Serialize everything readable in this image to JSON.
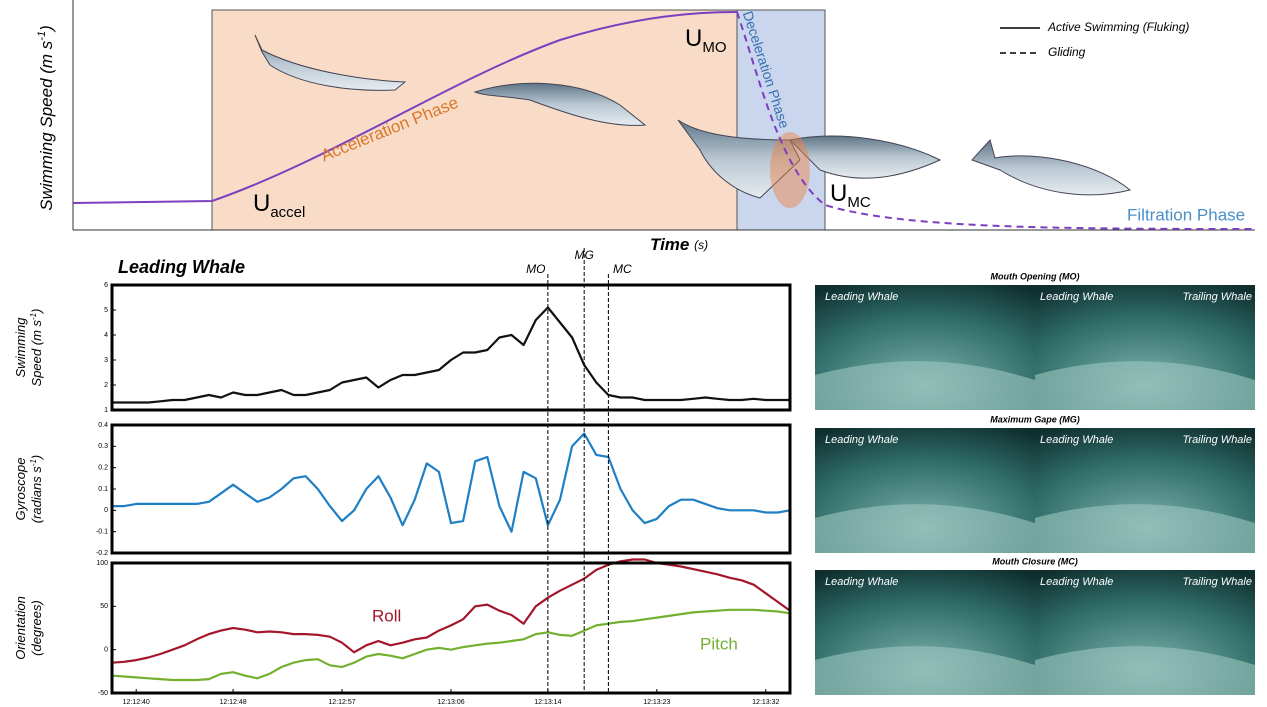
{
  "schematic": {
    "ylabel": {
      "text": "Swimming Speed (m s",
      "sup": "-1",
      "end": ")"
    },
    "xlabel": {
      "text": "Time",
      "unit": "(s)"
    },
    "phases": [
      "Acceleration Phase",
      "Deceleration Phase",
      "Filtration Phase"
    ],
    "speeds": [
      {
        "main": "U",
        "sub": "accel"
      },
      {
        "main": "U",
        "sub": "MO"
      },
      {
        "main": "U",
        "sub": "MC"
      }
    ],
    "legend": [
      "Active Swimming (Fluking)",
      "Gliding"
    ]
  },
  "panel_title": "Leading Whale",
  "events": [
    {
      "label": "MO",
      "x": "12:13:14"
    },
    {
      "label": "MG",
      "x": "12:13:17"
    },
    {
      "label": "MC",
      "x": "12:13:19"
    }
  ],
  "chart_data": [
    {
      "type": "line",
      "ylabel": {
        "line1": "Swimming",
        "line2": "Speed (m s",
        "sup": "-1",
        "end": ")"
      },
      "x": [
        "12:12:38",
        "12:12:39",
        "12:12:40",
        "12:12:41",
        "12:12:42",
        "12:12:43",
        "12:12:44",
        "12:12:45",
        "12:12:46",
        "12:12:47",
        "12:12:48",
        "12:12:49",
        "12:12:50",
        "12:12:51",
        "12:12:52",
        "12:12:53",
        "12:12:54",
        "12:12:55",
        "12:12:56",
        "12:12:57",
        "12:12:58",
        "12:12:59",
        "12:13:00",
        "12:13:01",
        "12:13:02",
        "12:13:03",
        "12:13:04",
        "12:13:05",
        "12:13:06",
        "12:13:07",
        "12:13:08",
        "12:13:09",
        "12:13:10",
        "12:13:11",
        "12:13:12",
        "12:13:13",
        "12:13:14",
        "12:13:15",
        "12:13:16",
        "12:13:17",
        "12:13:18",
        "12:13:19",
        "12:13:20",
        "12:13:21",
        "12:13:22",
        "12:13:23",
        "12:13:24",
        "12:13:25",
        "12:13:26",
        "12:13:27",
        "12:13:28",
        "12:13:29",
        "12:13:30",
        "12:13:31",
        "12:13:32",
        "12:13:33",
        "12:13:34"
      ],
      "xlim": [
        "12:12:38",
        "12:13:34"
      ],
      "ylim": [
        1,
        6
      ],
      "yticks": [
        1,
        2,
        3,
        4,
        5,
        6
      ],
      "series": [
        {
          "color": "#111111",
          "values": [
            1.3,
            1.3,
            1.3,
            1.3,
            1.35,
            1.4,
            1.4,
            1.5,
            1.6,
            1.5,
            1.7,
            1.6,
            1.6,
            1.7,
            1.8,
            1.6,
            1.6,
            1.7,
            1.8,
            2.1,
            2.2,
            2.3,
            1.9,
            2.2,
            2.4,
            2.4,
            2.5,
            2.6,
            3.0,
            3.3,
            3.3,
            3.4,
            3.9,
            4.0,
            3.6,
            4.6,
            5.1,
            4.5,
            3.9,
            2.8,
            2.1,
            1.6,
            1.5,
            1.5,
            1.4,
            1.4,
            1.4,
            1.4,
            1.45,
            1.5,
            1.45,
            1.4,
            1.4,
            1.45,
            1.4,
            1.4,
            1.4
          ]
        }
      ]
    },
    {
      "type": "line",
      "ylabel": {
        "line1": "Gyroscope",
        "line2": "(radians s",
        "sup": "-1",
        "end": ")"
      },
      "x": [
        "12:12:38",
        "12:12:39",
        "12:12:40",
        "12:12:41",
        "12:12:42",
        "12:12:43",
        "12:12:44",
        "12:12:45",
        "12:12:46",
        "12:12:47",
        "12:12:48",
        "12:12:49",
        "12:12:50",
        "12:12:51",
        "12:12:52",
        "12:12:53",
        "12:12:54",
        "12:12:55",
        "12:12:56",
        "12:12:57",
        "12:12:58",
        "12:12:59",
        "12:13:00",
        "12:13:01",
        "12:13:02",
        "12:13:03",
        "12:13:04",
        "12:13:05",
        "12:13:06",
        "12:13:07",
        "12:13:08",
        "12:13:09",
        "12:13:10",
        "12:13:11",
        "12:13:12",
        "12:13:13",
        "12:13:14",
        "12:13:15",
        "12:13:16",
        "12:13:17",
        "12:13:18",
        "12:13:19",
        "12:13:20",
        "12:13:21",
        "12:13:22",
        "12:13:23",
        "12:13:24",
        "12:13:25",
        "12:13:26",
        "12:13:27",
        "12:13:28",
        "12:13:29",
        "12:13:30",
        "12:13:31",
        "12:13:32",
        "12:13:33",
        "12:13:34"
      ],
      "xlim": [
        "12:12:38",
        "12:13:34"
      ],
      "ylim": [
        -0.2,
        0.4
      ],
      "yticks": [
        -0.2,
        -0.1,
        0,
        0.1,
        0.2,
        0.3,
        0.4
      ],
      "series": [
        {
          "color": "#1f7fc4",
          "values": [
            0.02,
            0.02,
            0.03,
            0.03,
            0.03,
            0.03,
            0.03,
            0.03,
            0.04,
            0.08,
            0.12,
            0.08,
            0.04,
            0.06,
            0.1,
            0.15,
            0.16,
            0.1,
            0.02,
            -0.05,
            0.0,
            0.1,
            0.16,
            0.06,
            -0.07,
            0.05,
            0.22,
            0.18,
            -0.06,
            -0.05,
            0.23,
            0.25,
            0.02,
            -0.1,
            0.18,
            0.15,
            -0.07,
            0.05,
            0.3,
            0.36,
            0.26,
            0.25,
            0.1,
            0.0,
            -0.06,
            -0.04,
            0.02,
            0.05,
            0.05,
            0.03,
            0.01,
            0.0,
            0.0,
            0.0,
            -0.01,
            -0.01,
            0.0
          ]
        }
      ]
    },
    {
      "type": "line",
      "ylabel": {
        "line1": "Orientation",
        "line2": "(degrees)"
      },
      "x": [
        "12:12:38",
        "12:12:39",
        "12:12:40",
        "12:12:41",
        "12:12:42",
        "12:12:43",
        "12:12:44",
        "12:12:45",
        "12:12:46",
        "12:12:47",
        "12:12:48",
        "12:12:49",
        "12:12:50",
        "12:12:51",
        "12:12:52",
        "12:12:53",
        "12:12:54",
        "12:12:55",
        "12:12:56",
        "12:12:57",
        "12:12:58",
        "12:12:59",
        "12:13:00",
        "12:13:01",
        "12:13:02",
        "12:13:03",
        "12:13:04",
        "12:13:05",
        "12:13:06",
        "12:13:07",
        "12:13:08",
        "12:13:09",
        "12:13:10",
        "12:13:11",
        "12:13:12",
        "12:13:13",
        "12:13:14",
        "12:13:15",
        "12:13:16",
        "12:13:17",
        "12:13:18",
        "12:13:19",
        "12:13:20",
        "12:13:21",
        "12:13:22",
        "12:13:23",
        "12:13:24",
        "12:13:25",
        "12:13:26",
        "12:13:27",
        "12:13:28",
        "12:13:29",
        "12:13:30",
        "12:13:31",
        "12:13:32",
        "12:13:33",
        "12:13:34"
      ],
      "xlim": [
        "12:12:38",
        "12:13:34"
      ],
      "ylim": [
        -50,
        100
      ],
      "yticks": [
        -50,
        0,
        50,
        100
      ],
      "xticks": [
        "12:12:40",
        "12:12:48",
        "12:12:57",
        "12:13:06",
        "12:13:14",
        "12:13:23",
        "12:13:32"
      ],
      "series": [
        {
          "name": "Roll",
          "color": "#a3162b",
          "values": [
            -15,
            -14,
            -12,
            -9,
            -5,
            0,
            5,
            12,
            18,
            22,
            25,
            23,
            20,
            21,
            20,
            18,
            18,
            17,
            15,
            8,
            -3,
            5,
            10,
            5,
            8,
            12,
            14,
            22,
            28,
            35,
            50,
            52,
            45,
            40,
            30,
            50,
            60,
            68,
            75,
            82,
            92,
            98,
            102,
            104,
            104,
            100,
            98,
            96,
            93,
            90,
            87,
            83,
            80,
            75,
            65,
            55,
            45
          ]
        },
        {
          "name": "Pitch",
          "color": "#73b030",
          "values": [
            -30,
            -31,
            -32,
            -33,
            -34,
            -35,
            -35,
            -35,
            -34,
            -28,
            -26,
            -30,
            -33,
            -28,
            -20,
            -15,
            -12,
            -11,
            -18,
            -20,
            -15,
            -8,
            -5,
            -7,
            -10,
            -5,
            0,
            2,
            0,
            3,
            5,
            7,
            8,
            10,
            12,
            18,
            20,
            17,
            16,
            22,
            28,
            30,
            32,
            33,
            35,
            37,
            39,
            41,
            43,
            44,
            45,
            46,
            46,
            46,
            45,
            44,
            42
          ]
        }
      ]
    }
  ],
  "photos": [
    {
      "title": "Mouth Opening (MO)",
      "labels": [
        "Leading Whale",
        "Leading Whale",
        "Trailing Whale"
      ]
    },
    {
      "title": "Maximum Gape (MG)",
      "labels": [
        "Leading Whale",
        "Leading Whale",
        "Trailing Whale"
      ]
    },
    {
      "title": "Mouth Closure (MC)",
      "labels": [
        "Leading Whale",
        "Leading Whale",
        "Trailing Whale"
      ]
    }
  ]
}
